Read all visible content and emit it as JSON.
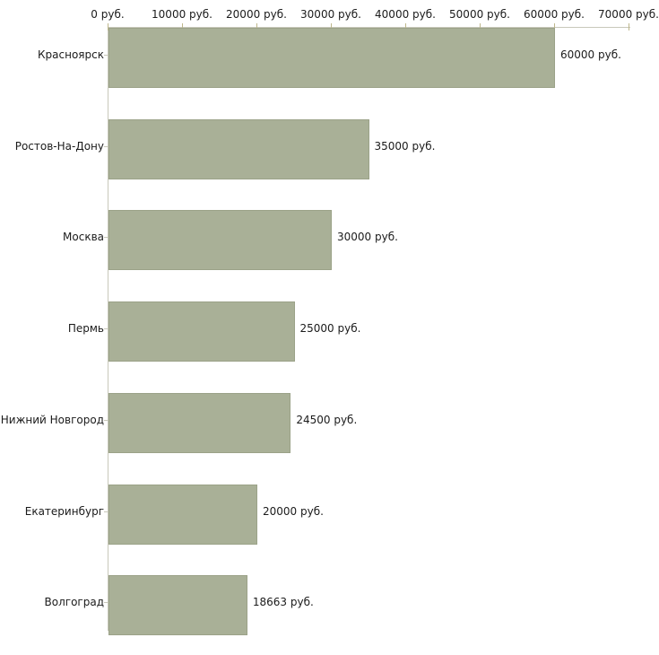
{
  "chart_data": {
    "type": "bar",
    "orientation": "horizontal",
    "title": "",
    "xlabel": "",
    "ylabel": "",
    "grid": false,
    "legend": false,
    "categories": [
      "Красноярск",
      "Ростов-На-Дону",
      "Москва",
      "Пермь",
      "Нижний Новгород",
      "Екатеринбург",
      "Волгоград"
    ],
    "values": [
      60000,
      35000,
      30000,
      25000,
      24500,
      20000,
      18663
    ],
    "value_labels": [
      "60000 руб.",
      "35000 руб.",
      "30000 руб.",
      "25000 руб.",
      "24500 руб.",
      "20000 руб.",
      "18663 руб."
    ],
    "x_axis": {
      "position": "top",
      "min": 0,
      "max": 70000,
      "ticks": [
        0,
        10000,
        20000,
        30000,
        40000,
        50000,
        60000,
        70000
      ],
      "tick_labels": [
        "0 руб.",
        "10000 руб.",
        "20000 руб.",
        "30000 руб.",
        "40000 руб.",
        "50000 руб.",
        "60000 руб.",
        "70000 руб."
      ]
    },
    "colors": {
      "bar_fill": "#a9b097",
      "bar_border": "#9ba288",
      "axis_line": "#c8c8ba",
      "tick_mark": "#beb78c",
      "text": "#1b1b1b",
      "background": "#ffffff"
    }
  }
}
